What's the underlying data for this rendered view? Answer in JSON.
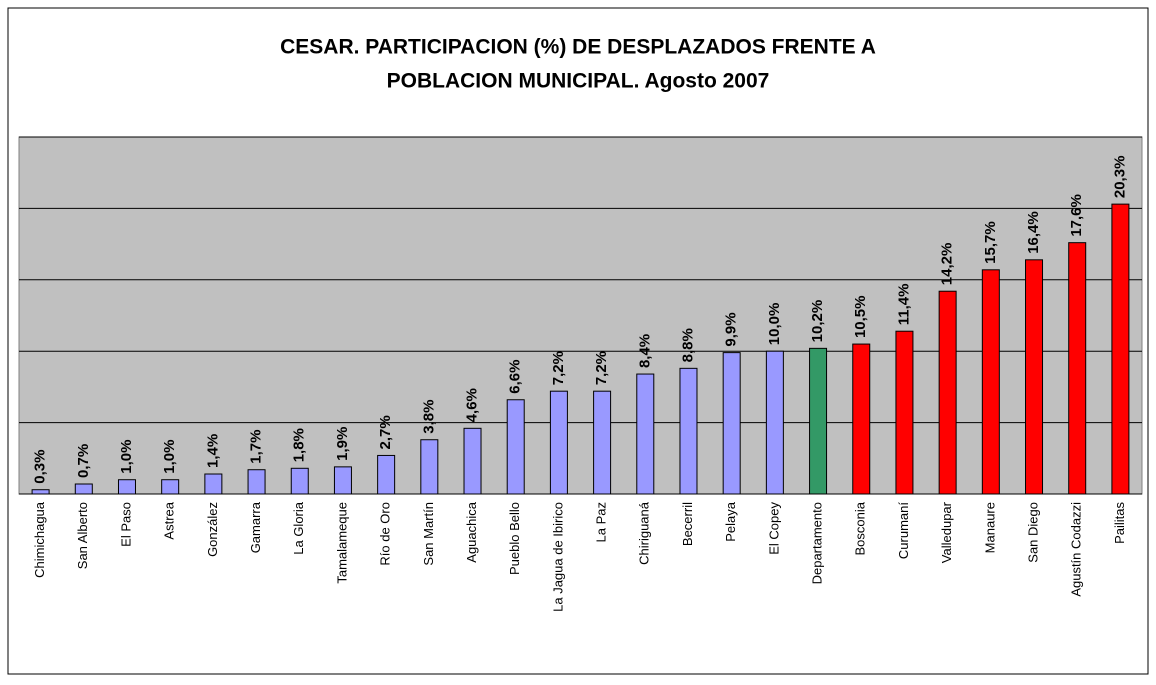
{
  "chart_data": {
    "type": "bar",
    "title": [
      "CESAR. PARTICIPACION (%) DE DESPLAZADOS FRENTE A",
      "POBLACION MUNICIPAL. Agosto 2007"
    ],
    "categories": [
      "Chimichagua",
      "San Alberto",
      "El Paso",
      "Astrea",
      "González",
      "Gamarra",
      "La Gloria",
      "Tamalameque",
      "Río de Oro",
      "San Martín",
      "Aguachica",
      "Pueblo Bello",
      "La Jagua de Ibirico",
      "La Paz",
      "Chiriguaná",
      "Becerril",
      "Pelaya",
      "El Copey",
      "Departamento",
      "Bosconia",
      "Curumaní",
      "Valledupar",
      "Manaure",
      "San Diego",
      "Agustín Codazzi",
      "Pailitas"
    ],
    "values": [
      0.3,
      0.7,
      1.0,
      1.0,
      1.4,
      1.7,
      1.8,
      1.9,
      2.7,
      3.8,
      4.6,
      6.6,
      7.2,
      7.2,
      8.4,
      8.8,
      9.9,
      10.0,
      10.2,
      10.5,
      11.4,
      14.2,
      15.7,
      16.4,
      17.6,
      20.3
    ],
    "value_labels": [
      "0,3%",
      "0,7%",
      "1,0%",
      "1,0%",
      "1,4%",
      "1,7%",
      "1,8%",
      "1,9%",
      "2,7%",
      "3,8%",
      "4,6%",
      "6,6%",
      "7,2%",
      "7,2%",
      "8,4%",
      "8,8%",
      "9,9%",
      "10,0%",
      "10,2%",
      "10,5%",
      "11,4%",
      "14,2%",
      "15,7%",
      "16,4%",
      "17,6%",
      "20,3%"
    ],
    "colors": [
      "#9999ff",
      "#9999ff",
      "#9999ff",
      "#9999ff",
      "#9999ff",
      "#9999ff",
      "#9999ff",
      "#9999ff",
      "#9999ff",
      "#9999ff",
      "#9999ff",
      "#9999ff",
      "#9999ff",
      "#9999ff",
      "#9999ff",
      "#9999ff",
      "#9999ff",
      "#9999ff",
      "#339966",
      "#ff0000",
      "#ff0000",
      "#ff0000",
      "#ff0000",
      "#ff0000",
      "#ff0000",
      "#ff0000"
    ],
    "ylim": [
      0,
      25
    ],
    "yticks": [
      0,
      5,
      10,
      15,
      20,
      25
    ],
    "grid": true
  }
}
